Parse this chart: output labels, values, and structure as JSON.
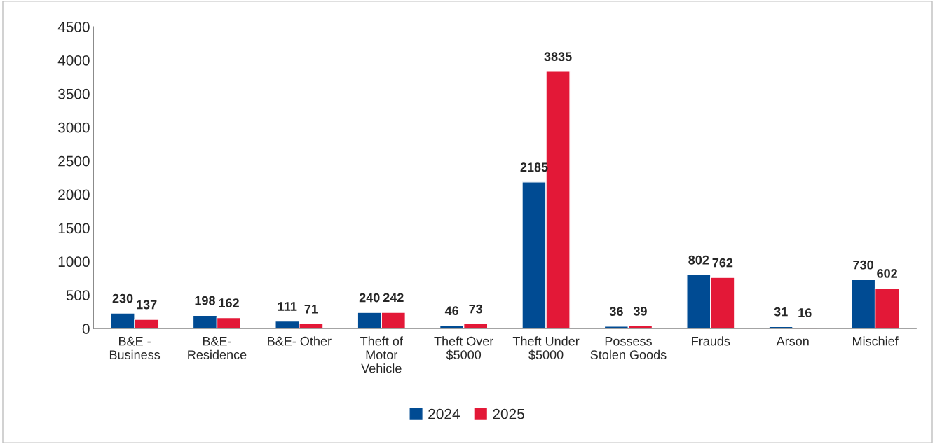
{
  "chart_data": {
    "type": "bar",
    "categories": [
      "B&E -\nBusiness",
      "B&E-\nResidence",
      "B&E- Other",
      "Theft of\nMotor\nVehicle",
      "Theft Over\n$5000",
      "Theft Under\n$5000",
      "Possess\nStolen Goods",
      "Frauds",
      "Arson",
      "Mischief"
    ],
    "series": [
      {
        "name": "2024",
        "color": "#004b93",
        "values": [
          230,
          198,
          111,
          240,
          46,
          2185,
          36,
          802,
          31,
          730
        ]
      },
      {
        "name": "2025",
        "color": "#e31837",
        "values": [
          137,
          162,
          71,
          242,
          73,
          3835,
          39,
          762,
          16,
          602
        ]
      }
    ],
    "ylim": [
      0,
      4500
    ],
    "yticks": [
      0,
      500,
      1000,
      1500,
      2000,
      2500,
      3000,
      3500,
      4000,
      4500
    ],
    "data_labels": true,
    "legend": "bottom",
    "grid": false
  }
}
